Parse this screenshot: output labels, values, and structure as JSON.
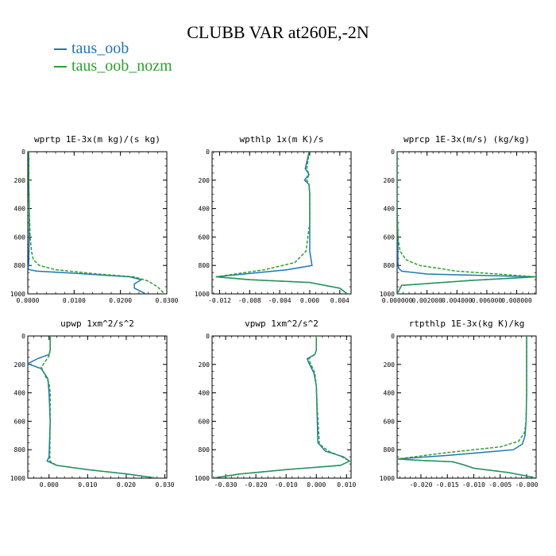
{
  "figure": {
    "title": "CLUBB VAR at260E,-2N",
    "legend": [
      {
        "label": "taus_oob",
        "color": "#1f77b4"
      },
      {
        "label": "taus_oob_nozm",
        "color": "#2ca02c"
      }
    ]
  },
  "chart_data": [
    {
      "type": "line",
      "title": "wprtp  1E-3x(m kg)/(s kg)",
      "xlim": [
        0,
        0.03
      ],
      "ylim": [
        0,
        1000
      ],
      "y_inverted": true,
      "xticks": [
        0,
        0.01,
        0.02,
        0.03
      ],
      "xtick_labels": [
        "0.0000",
        "0.0100",
        "0.0200",
        "0.0300"
      ],
      "yticks": [
        0,
        200,
        400,
        600,
        800,
        1000
      ],
      "series": [
        {
          "name": "taus_oob",
          "color": "#1f77b4",
          "dashed": false,
          "x": [
            0.0002,
            0.0002,
            0.0003,
            0.0003,
            0.0002,
            0.0001,
            0.0003,
            0.002,
            0.01,
            0.022,
            0.0245,
            0.023,
            0.023,
            0.0255
          ],
          "y": [
            0,
            200,
            400,
            600,
            780,
            820,
            830,
            840,
            855,
            880,
            900,
            930,
            960,
            1000
          ]
        },
        {
          "name": "taus_oob_nozm",
          "color": "#2ca02c",
          "dashed": true,
          "x": [
            0.0002,
            0.0002,
            0.0003,
            0.0005,
            0.0008,
            0.0012,
            0.0025,
            0.006,
            0.015,
            0.023,
            0.026,
            0.028,
            0.0295
          ],
          "y": [
            0,
            200,
            400,
            600,
            700,
            760,
            800,
            830,
            860,
            880,
            910,
            950,
            1000
          ]
        }
      ]
    },
    {
      "type": "line",
      "title": "wpthlp  1x(m K)/s",
      "xlim": [
        -0.013,
        0.0055
      ],
      "ylim": [
        0,
        1000
      ],
      "y_inverted": true,
      "xticks": [
        -0.012,
        -0.008,
        -0.004,
        0,
        0.004
      ],
      "xtick_labels": [
        "-0.012",
        "-0.008",
        "-0.004",
        "0.000",
        "0.004"
      ],
      "yticks": [
        0,
        200,
        400,
        600,
        800,
        1000
      ],
      "series": [
        {
          "name": "taus_oob",
          "color": "#1f77b4",
          "dashed": false,
          "x": [
            -0.0001,
            -0.0003,
            -0.0006,
            -0.0001,
            -0.0007,
            -0.0001,
            0,
            0,
            0,
            0.0003,
            -0.003,
            -0.0125,
            -0.008,
            0,
            0.004,
            0.005
          ],
          "y": [
            0,
            50,
            120,
            160,
            200,
            230,
            300,
            500,
            700,
            800,
            830,
            880,
            900,
            920,
            960,
            1000
          ]
        },
        {
          "name": "taus_oob_nozm",
          "color": "#2ca02c",
          "dashed": true,
          "x": [
            -0.0001,
            -0.0002,
            -0.0004,
            -0.0001,
            -0.0004,
            -0.0001,
            0,
            0,
            -0.0005,
            -0.002,
            -0.006,
            -0.0125,
            -0.008,
            0,
            0.004,
            0.005
          ],
          "y": [
            0,
            50,
            120,
            160,
            200,
            230,
            300,
            500,
            700,
            780,
            830,
            880,
            900,
            920,
            960,
            1000
          ]
        }
      ]
    },
    {
      "type": "line",
      "title": "wprcp  1E-3x(m/s) (kg/kg)",
      "xlim": [
        0,
        0.0093
      ],
      "ylim": [
        0,
        1000
      ],
      "y_inverted": true,
      "xticks": [
        0,
        0.002,
        0.004,
        0.006,
        0.008
      ],
      "xtick_labels": [
        "0.000000",
        "0.002000",
        "0.004000",
        "0.006000",
        "0.008000"
      ],
      "yticks": [
        0,
        200,
        400,
        600,
        800,
        1000
      ],
      "series": [
        {
          "name": "taus_oob",
          "color": "#1f77b4",
          "dashed": false,
          "x": [
            0,
            0,
            5e-05,
            5e-05,
            5e-05,
            0.0001,
            0.0003,
            0.002,
            0.0093,
            0.005,
            0.0003,
            0
          ],
          "y": [
            0,
            400,
            600,
            720,
            780,
            820,
            840,
            860,
            880,
            905,
            940,
            1000
          ]
        },
        {
          "name": "taus_oob_nozm",
          "color": "#2ca02c",
          "dashed": true,
          "x": [
            0,
            0,
            5e-05,
            0.0002,
            0.0006,
            0.0015,
            0.004,
            0.0093,
            0.005,
            0.0003,
            0
          ],
          "y": [
            0,
            400,
            600,
            700,
            760,
            800,
            840,
            880,
            905,
            940,
            1000
          ]
        }
      ]
    },
    {
      "type": "line",
      "title": "upwp  1xm^2/s^2",
      "xlim": [
        -0.0055,
        0.0305
      ],
      "ylim": [
        0,
        1000
      ],
      "y_inverted": true,
      "xticks": [
        0,
        0.01,
        0.02,
        0.03
      ],
      "xtick_labels": [
        "0.000",
        "0.010",
        "0.020",
        "0.030"
      ],
      "yticks": [
        0,
        200,
        400,
        600,
        800,
        1000
      ],
      "series": [
        {
          "name": "taus_oob",
          "color": "#1f77b4",
          "dashed": false,
          "x": [
            0.0003,
            0.0003,
            0,
            -0.003,
            -0.0055,
            -0.002,
            -0.0003,
            0,
            0.0003,
            0,
            -0.0005,
            0.002,
            0.01,
            0.02,
            0.028
          ],
          "y": [
            0,
            100,
            130,
            160,
            195,
            230,
            300,
            400,
            600,
            850,
            880,
            910,
            940,
            970,
            1000
          ]
        },
        {
          "name": "taus_oob_nozm",
          "color": "#2ca02c",
          "dashed": true,
          "x": [
            0.0003,
            0.0003,
            0,
            -0.001,
            -0.002,
            -0.001,
            0,
            0.0003,
            0.0003,
            0.0002,
            0.002,
            0.01,
            0.02,
            0.028
          ],
          "y": [
            0,
            100,
            140,
            180,
            220,
            280,
            330,
            400,
            600,
            880,
            910,
            940,
            970,
            1000
          ]
        }
      ]
    },
    {
      "type": "line",
      "title": "vpwp  1xm^2/s^2",
      "xlim": [
        -0.0345,
        0.0115
      ],
      "ylim": [
        0,
        1000
      ],
      "y_inverted": true,
      "xticks": [
        -0.03,
        -0.02,
        -0.01,
        0,
        0.01
      ],
      "xtick_labels": [
        "-0.030",
        "-0.020",
        "-0.010",
        "0.000",
        "0.010"
      ],
      "yticks": [
        0,
        200,
        400,
        600,
        800,
        1000
      ],
      "series": [
        {
          "name": "taus_oob",
          "color": "#1f77b4",
          "dashed": false,
          "x": [
            0,
            0,
            -0.0005,
            -0.003,
            -0.0025,
            -0.0008,
            0,
            0.0002,
            0.0005,
            0.003,
            0.009,
            0.011,
            0.008,
            -0.01,
            -0.025,
            -0.0345
          ],
          "y": [
            0,
            100,
            130,
            160,
            190,
            260,
            350,
            500,
            750,
            810,
            850,
            880,
            910,
            940,
            970,
            1000
          ]
        },
        {
          "name": "taus_oob_nozm",
          "color": "#2ca02c",
          "dashed": true,
          "x": [
            0,
            0,
            -0.0005,
            -0.0025,
            -0.002,
            -0.0005,
            0,
            0.0003,
            0.001,
            0.004,
            0.0085,
            0.011,
            0.008,
            -0.01,
            -0.025,
            -0.0345
          ],
          "y": [
            0,
            100,
            130,
            160,
            190,
            260,
            350,
            500,
            760,
            810,
            850,
            880,
            910,
            940,
            970,
            1000
          ]
        }
      ]
    },
    {
      "type": "line",
      "title": "rtpthlp  1E-3x(kg K)/kg",
      "xlim": [
        -0.0245,
        0.0018
      ],
      "ylim": [
        0,
        1000
      ],
      "y_inverted": true,
      "xticks": [
        -0.02,
        -0.015,
        -0.01,
        -0.005,
        0
      ],
      "xtick_labels": [
        "-0.020",
        "-0.015",
        "-0.010",
        "-0.005",
        "-0.000"
      ],
      "yticks": [
        0,
        200,
        400,
        600,
        800,
        1000
      ],
      "series": [
        {
          "name": "taus_oob",
          "color": "#1f77b4",
          "dashed": false,
          "x": [
            0,
            0,
            -0.0001,
            -0.0003,
            -0.0008,
            -0.0025,
            -0.015,
            -0.0245,
            -0.02,
            -0.014,
            -0.012,
            -0.01,
            -0.0035,
            0,
            0.0018
          ],
          "y": [
            0,
            400,
            600,
            700,
            760,
            800,
            840,
            865,
            875,
            885,
            905,
            930,
            960,
            985,
            1000
          ]
        },
        {
          "name": "taus_oob_nozm",
          "color": "#2ca02c",
          "dashed": true,
          "x": [
            0,
            0,
            -0.0001,
            -0.0004,
            -0.0015,
            -0.005,
            -0.015,
            -0.0245,
            -0.02,
            -0.014,
            -0.012,
            -0.01,
            -0.0035,
            0,
            0.0018
          ],
          "y": [
            0,
            400,
            600,
            680,
            740,
            780,
            820,
            865,
            875,
            885,
            905,
            930,
            960,
            985,
            1000
          ]
        }
      ]
    }
  ]
}
